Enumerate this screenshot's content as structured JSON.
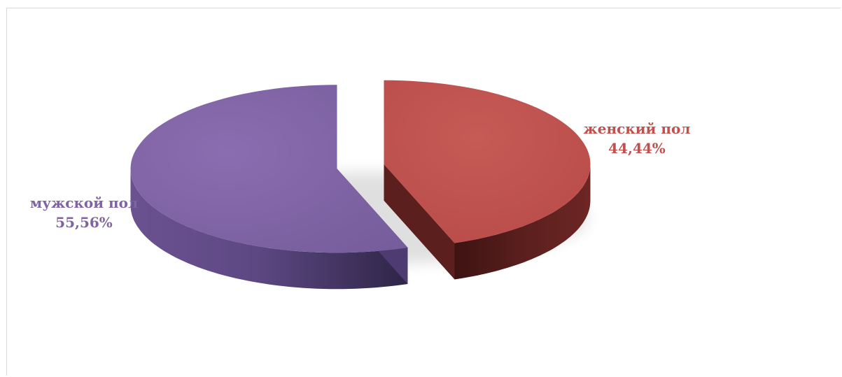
{
  "chart_data": {
    "type": "pie",
    "three_d": true,
    "exploded": true,
    "slices": [
      {
        "name": "женский пол",
        "percent_label": "44,44%",
        "value": 44.44,
        "color": "#C0504D"
      },
      {
        "name": "мужской пол",
        "percent_label": "55,56%",
        "value": 55.56,
        "color": "#8064A2"
      }
    ]
  }
}
